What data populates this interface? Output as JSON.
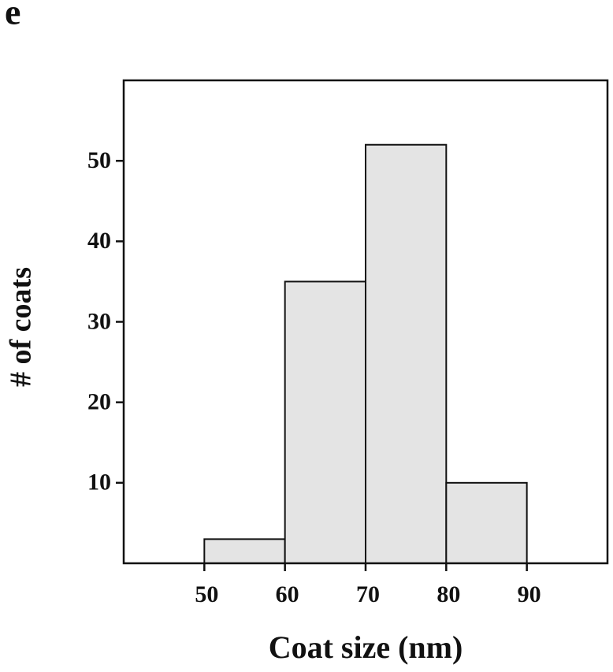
{
  "chart_data": {
    "type": "histogram",
    "panel_label": "e",
    "xlabel": "Coat size (nm)",
    "ylabel": "# of coats",
    "bins": [
      50,
      60,
      70,
      80,
      90
    ],
    "values": [
      3,
      35,
      52,
      10
    ],
    "color": "#e4e4e4",
    "xlim": [
      40,
      100
    ],
    "xticks": [
      50,
      60,
      70,
      80,
      90
    ],
    "ylim": [
      0,
      60
    ],
    "yticks": [
      10,
      20,
      30,
      40,
      50
    ],
    "grid": false
  }
}
